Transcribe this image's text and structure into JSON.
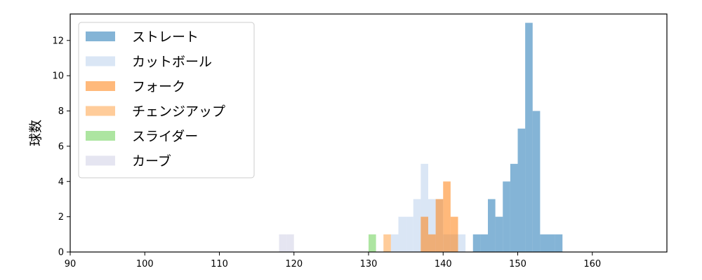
{
  "chart_data": {
    "type": "histogram",
    "xlabel": "",
    "ylabel": "球数",
    "xlim": [
      90,
      170
    ],
    "ylim": [
      0,
      13.5
    ],
    "xticks": [
      90,
      100,
      110,
      120,
      130,
      140,
      150,
      160
    ],
    "yticks": [
      0,
      2,
      4,
      6,
      8,
      10,
      12
    ],
    "legend_position": "upper-left",
    "grid": false,
    "series": [
      {
        "name": "ストレート",
        "color": "#1f77b4",
        "alpha": 0.55,
        "bin_width": 1,
        "bins": [
          [
            144,
            1
          ],
          [
            145,
            1
          ],
          [
            146,
            3
          ],
          [
            147,
            2
          ],
          [
            148,
            4
          ],
          [
            149,
            5
          ],
          [
            150,
            7
          ],
          [
            151,
            13
          ],
          [
            152,
            8
          ],
          [
            153,
            1
          ],
          [
            154,
            1
          ],
          [
            155,
            1
          ]
        ]
      },
      {
        "name": "カットボール",
        "color": "#aec7e8",
        "alpha": 0.45,
        "bin_width": 1,
        "bins": [
          [
            133,
            1
          ],
          [
            134,
            2
          ],
          [
            135,
            2
          ],
          [
            136,
            3
          ],
          [
            137,
            5
          ],
          [
            138,
            3
          ],
          [
            139,
            3
          ],
          [
            140,
            1
          ],
          [
            141,
            1
          ],
          [
            142,
            1
          ]
        ]
      },
      {
        "name": "フォーク",
        "color": "#ff7f0e",
        "alpha": 0.55,
        "bin_width": 1,
        "bins": [
          [
            137,
            2
          ],
          [
            138,
            1
          ],
          [
            139,
            3
          ],
          [
            140,
            4
          ],
          [
            141,
            2
          ]
        ]
      },
      {
        "name": "チェンジアップ",
        "color": "#ffbb78",
        "alpha": 0.75,
        "bin_width": 1,
        "bins": [
          [
            132,
            1
          ]
        ]
      },
      {
        "name": "スライダー",
        "color": "#98df8a",
        "alpha": 0.8,
        "bin_width": 1,
        "bins": [
          [
            130,
            1
          ]
        ]
      },
      {
        "name": "カーブ",
        "color": "#c5c5e0",
        "alpha": 0.45,
        "bin_width": 1,
        "bins": [
          [
            118,
            1
          ],
          [
            119,
            1
          ]
        ]
      }
    ]
  }
}
